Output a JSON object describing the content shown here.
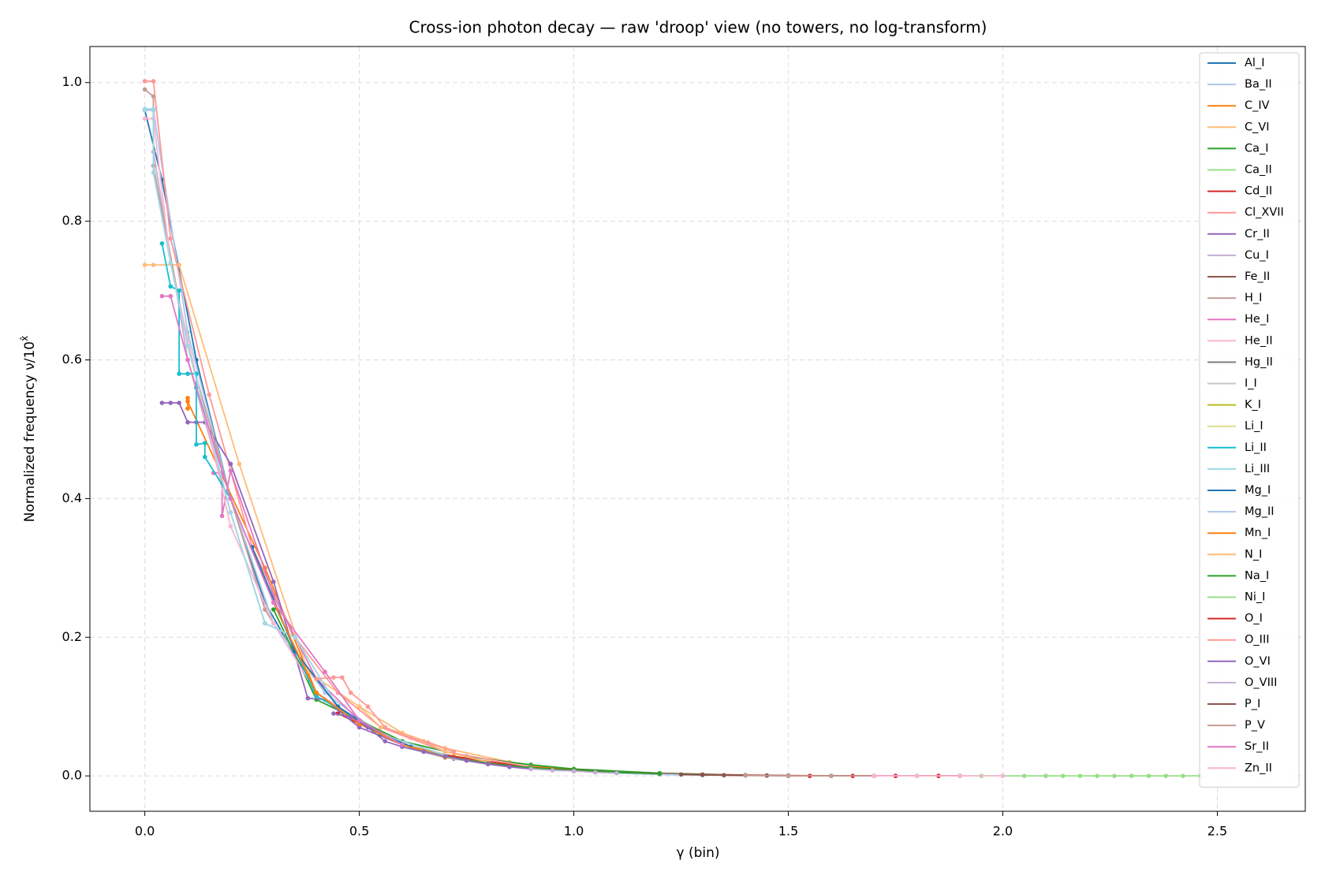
{
  "chart_data": {
    "type": "line",
    "title": "Cross-ion photon decay — raw 'droop' view (no towers, no log-transform)",
    "xlabel": "γ (bin)",
    "ylabel": {
      "text": "Normalized frequency  ν/10",
      "superscript": "x̂"
    },
    "xlim": [
      -0.128,
      2.705
    ],
    "ylim": [
      -0.051,
      1.052
    ],
    "xticks": [
      {
        "value": 0,
        "label": "0.0"
      },
      0.5,
      {
        "value": 1,
        "label": "1.0"
      },
      1.5,
      {
        "value": 2,
        "label": "2.0"
      },
      2.5
    ],
    "yticks": [
      {
        "value": 0,
        "label": "0.0"
      },
      0.2,
      0.4,
      0.6,
      0.8,
      {
        "value": 1,
        "label": "1.0"
      }
    ],
    "grid": true,
    "legend": "upper right",
    "markers": true,
    "series": [
      {
        "name": "Al_I",
        "color": "#1f77b4",
        "x": [
          0,
          0.04,
          0.12,
          0.2,
          0.28,
          0.4,
          0.5,
          0.62,
          0.75,
          0.9,
          1.05
        ],
        "values": [
          0.96,
          0.86,
          0.6,
          0.4,
          0.25,
          0.12,
          0.075,
          0.042,
          0.024,
          0.012,
          0.006
        ]
      },
      {
        "name": "Ba_II",
        "color": "#aec7e8",
        "x": [
          0,
          0.02,
          0.1,
          0.2,
          0.3,
          0.42,
          0.55,
          0.7,
          0.85,
          1.0
        ],
        "values": [
          0.96,
          0.96,
          0.64,
          0.4,
          0.22,
          0.12,
          0.06,
          0.03,
          0.016,
          0.008
        ]
      },
      {
        "name": "C_IV",
        "color": "#ff7f0e",
        "x": [
          0.1,
          0.1,
          0.1,
          0.28,
          0.4,
          0.5,
          0.6,
          0.72,
          0.85,
          1.0,
          1.2
        ],
        "values": [
          0.545,
          0.53,
          0.54,
          0.3,
          0.12,
          0.08,
          0.045,
          0.028,
          0.016,
          0.009,
          0.003
        ]
      },
      {
        "name": "C_VI",
        "color": "#ffbb78",
        "x": [
          0,
          0.02,
          0.08,
          0.22,
          0.38,
          0.5,
          0.6,
          0.7,
          0.85
        ],
        "values": [
          0.737,
          0.737,
          0.737,
          0.45,
          0.15,
          0.1,
          0.062,
          0.04,
          0.02
        ]
      },
      {
        "name": "Ca_I",
        "color": "#2ca02c",
        "x": [
          0.3,
          0.4,
          0.5,
          0.6,
          0.75,
          0.9,
          1.0,
          1.2,
          1.4
        ],
        "values": [
          0.24,
          0.11,
          0.08,
          0.05,
          0.028,
          0.016,
          0.01,
          0.004,
          0.001
        ]
      },
      {
        "name": "Ca_II",
        "color": "#98df8a",
        "x": [
          2.1,
          2.14,
          2.18,
          2.22,
          2.26,
          2.3,
          2.34,
          2.38,
          2.42,
          2.46
        ],
        "values": [
          0,
          0,
          0,
          0,
          0,
          0,
          0,
          0,
          0,
          0
        ]
      },
      {
        "name": "Cd_II",
        "color": "#d62728",
        "x": [
          0.45,
          0.55,
          0.7,
          0.9,
          1.1,
          1.3,
          1.5,
          1.7,
          1.9
        ],
        "values": [
          0.09,
          0.06,
          0.03,
          0.012,
          0.005,
          0.002,
          0.0005,
          0,
          0
        ]
      },
      {
        "name": "Cl_XVII",
        "color": "#ff9896",
        "x": [
          0,
          0.02,
          0.06,
          0.15,
          0.25,
          0.35,
          0.45,
          0.55,
          0.7,
          0.9
        ],
        "values": [
          1.002,
          1.002,
          0.775,
          0.55,
          0.33,
          0.2,
          0.12,
          0.07,
          0.035,
          0.013
        ]
      },
      {
        "name": "Cr_II",
        "color": "#9467bd",
        "x": [
          0.04,
          0.06,
          0.08,
          0.1,
          0.12,
          0.14,
          0.2,
          0.3,
          0.38,
          0.42,
          0.5,
          0.6,
          0.72,
          0.85
        ],
        "values": [
          0.538,
          0.538,
          0.538,
          0.51,
          0.51,
          0.51,
          0.45,
          0.28,
          0.112,
          0.11,
          0.07,
          0.045,
          0.025,
          0.013
        ]
      },
      {
        "name": "Cu_I",
        "color": "#c5b0d5",
        "x": [
          0.02,
          0.1,
          0.2,
          0.28,
          0.35,
          0.45,
          0.55,
          0.7
        ],
        "values": [
          0.9,
          0.6,
          0.38,
          0.22,
          0.2,
          0.1,
          0.06,
          0.03
        ]
      },
      {
        "name": "Fe_II",
        "color": "#8c564b",
        "x": [
          0.9,
          1.0,
          1.1,
          1.2,
          1.3,
          1.4,
          1.5,
          1.6
        ],
        "values": [
          0.012,
          0.008,
          0.005,
          0.003,
          0.0015,
          0.0008,
          0.0003,
          0
        ]
      },
      {
        "name": "H_I",
        "color": "#c49c94",
        "x": [
          0,
          0.02,
          0.02,
          0.1,
          0.2,
          0.28,
          0.4,
          0.55
        ],
        "values": [
          0.99,
          0.98,
          0.88,
          0.62,
          0.4,
          0.24,
          0.12,
          0.06
        ]
      },
      {
        "name": "He_I",
        "color": "#e377c2",
        "x": [
          0.16,
          0.18,
          0.18,
          0.2,
          0.3,
          0.4,
          0.5,
          0.6
        ],
        "values": [
          0.437,
          0.437,
          0.375,
          0.44,
          0.26,
          0.14,
          0.08,
          0.045
        ]
      },
      {
        "name": "He_II",
        "color": "#f7b6d2",
        "x": [
          0,
          0.02,
          0.06,
          0.2,
          0.3,
          0.4,
          0.5
        ],
        "values": [
          0.948,
          0.948,
          0.74,
          0.36,
          0.22,
          0.12,
          0.08
        ]
      },
      {
        "name": "Hg_II",
        "color": "#7f7f7f",
        "x": [
          1.2,
          1.3,
          1.4,
          1.5,
          1.6,
          1.7
        ],
        "values": [
          0.003,
          0.0015,
          0.0008,
          0.0003,
          0.0001,
          0
        ]
      },
      {
        "name": "I_I",
        "color": "#c7c7c7",
        "x": [
          0.6,
          0.7,
          0.8,
          0.9,
          1.0,
          1.1,
          1.2
        ],
        "values": [
          0.042,
          0.026,
          0.017,
          0.011,
          0.007,
          0.004,
          0.002
        ]
      },
      {
        "name": "K_I",
        "color": "#bcbd22",
        "x": [
          0.5,
          0.6,
          0.7,
          0.8,
          0.9,
          1.0
        ],
        "values": [
          0.075,
          0.045,
          0.028,
          0.018,
          0.011,
          0.007
        ]
      },
      {
        "name": "Li_I",
        "color": "#dbdb8d",
        "x": [
          0.7,
          0.8,
          0.9,
          1.0,
          1.1
        ],
        "values": [
          0.027,
          0.017,
          0.011,
          0.007,
          0.004
        ]
      },
      {
        "name": "Li_II",
        "color": "#17becf",
        "x": [
          0.04,
          0.06,
          0.08,
          0.08,
          0.1,
          0.12,
          0.12,
          0.12,
          0.14,
          0.14,
          0.2,
          0.3,
          0.4,
          0.5
        ],
        "values": [
          0.768,
          0.706,
          0.7,
          0.58,
          0.58,
          0.58,
          0.56,
          0.478,
          0.48,
          0.46,
          0.4,
          0.25,
          0.115,
          0.08
        ]
      },
      {
        "name": "Li_III",
        "color": "#9edae5",
        "x": [
          0,
          0.02,
          0.02,
          0.06,
          0.1,
          0.2,
          0.28,
          0.35,
          0.45,
          0.55,
          0.7
        ],
        "values": [
          0.962,
          0.962,
          0.87,
          0.74,
          0.62,
          0.38,
          0.22,
          0.2,
          0.1,
          0.06,
          0.03
        ]
      },
      {
        "name": "Mg_I",
        "color": "#1f77b4",
        "x": [
          0.25,
          0.35,
          0.45,
          0.55,
          0.65
        ],
        "values": [
          0.33,
          0.18,
          0.1,
          0.06,
          0.035
        ]
      },
      {
        "name": "Mg_II",
        "color": "#aec7e8",
        "x": [
          0.8,
          0.9,
          1.0,
          1.1,
          1.2,
          1.3
        ],
        "values": [
          0.018,
          0.011,
          0.007,
          0.004,
          0.002,
          0.001
        ]
      },
      {
        "name": "Mn_I",
        "color": "#ff7f0e",
        "x": [
          0.3,
          0.4,
          0.5,
          0.6,
          0.7
        ],
        "values": [
          0.25,
          0.12,
          0.075,
          0.045,
          0.027
        ]
      },
      {
        "name": "N_I",
        "color": "#ffbb78",
        "x": [
          0.5,
          0.55,
          0.6,
          0.65,
          0.7,
          0.8
        ],
        "values": [
          0.1,
          0.07,
          0.062,
          0.05,
          0.035,
          0.02
        ]
      },
      {
        "name": "Na_I",
        "color": "#2ca02c",
        "x": [
          0.7,
          0.8,
          0.9,
          1.0,
          1.1,
          1.2
        ],
        "values": [
          0.028,
          0.018,
          0.012,
          0.008,
          0.005,
          0.003
        ]
      },
      {
        "name": "Ni_I",
        "color": "#98df8a",
        "x": [
          1.8,
          1.85,
          1.9,
          1.95,
          2.0,
          2.05,
          2.1
        ],
        "values": [
          0,
          0,
          0,
          0,
          0,
          0,
          0
        ]
      },
      {
        "name": "O_I",
        "color": "#d62728",
        "x": [
          1.5,
          1.55,
          1.6,
          1.65,
          1.7,
          1.75,
          1.8,
          1.85,
          1.9
        ],
        "values": [
          0,
          0,
          0,
          0,
          0,
          0,
          0,
          0,
          0
        ]
      },
      {
        "name": "O_III",
        "color": "#ff9896",
        "x": [
          0.4,
          0.44,
          0.46,
          0.48,
          0.52,
          0.56,
          0.62,
          0.66,
          0.72
        ],
        "values": [
          0.14,
          0.142,
          0.142,
          0.12,
          0.1,
          0.07,
          0.055,
          0.048,
          0.035
        ]
      },
      {
        "name": "O_VI",
        "color": "#9467bd",
        "x": [
          0.44,
          0.48,
          0.52,
          0.56,
          0.6,
          0.65,
          0.7,
          0.75,
          0.8,
          0.85,
          0.9
        ],
        "values": [
          0.09,
          0.085,
          0.07,
          0.05,
          0.042,
          0.035,
          0.028,
          0.022,
          0.017,
          0.013,
          0.01
        ]
      },
      {
        "name": "O_VIII",
        "color": "#c5b0d5",
        "x": [
          0.9,
          0.95,
          1.0,
          1.05,
          1.1
        ],
        "values": [
          0.01,
          0.008,
          0.007,
          0.005,
          0.004
        ]
      },
      {
        "name": "P_I",
        "color": "#8c564b",
        "x": [
          1.25,
          1.3,
          1.35,
          1.4,
          1.45
        ],
        "values": [
          0.002,
          0.0015,
          0.001,
          0.0008,
          0.0005
        ]
      },
      {
        "name": "P_V",
        "color": "#c49c94",
        "x": [
          1.4,
          1.5,
          1.6,
          1.7,
          1.8
        ],
        "values": [
          0.0005,
          0.0002,
          0,
          0,
          0
        ]
      },
      {
        "name": "Sr_II",
        "color": "#e377c2",
        "x": [
          0.04,
          0.06,
          0.1,
          0.2,
          0.3,
          0.42,
          0.5,
          0.6
        ],
        "values": [
          0.692,
          0.692,
          0.6,
          0.4,
          0.25,
          0.15,
          0.08,
          0.045
        ]
      },
      {
        "name": "Zn_II",
        "color": "#f7b6d2",
        "x": [
          1.7,
          1.8,
          1.9,
          2.0
        ],
        "values": [
          0,
          0,
          0,
          0
        ]
      }
    ]
  }
}
